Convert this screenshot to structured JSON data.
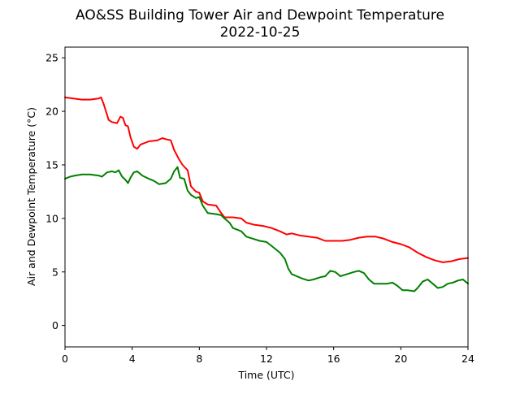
{
  "chart_data": {
    "type": "line",
    "title": "AO&SS Building Tower Air and Dewpoint Temperature",
    "subtitle": "2022-10-25",
    "xlabel": "Time (UTC)",
    "ylabel": "Air and Dewpoint Temperature (°C)",
    "xlim": [
      0,
      24
    ],
    "ylim": [
      -2,
      26
    ],
    "xticks": [
      0,
      4,
      8,
      12,
      16,
      20,
      24
    ],
    "yticks": [
      0,
      5,
      10,
      15,
      20,
      25
    ],
    "grid": false,
    "legend": "none",
    "series": [
      {
        "color": "#ff0000",
        "points": [
          [
            0.0,
            21.3
          ],
          [
            0.5,
            21.2
          ],
          [
            1.0,
            21.1
          ],
          [
            1.5,
            21.1
          ],
          [
            2.0,
            21.2
          ],
          [
            2.15,
            21.3
          ],
          [
            2.3,
            20.7
          ],
          [
            2.6,
            19.2
          ],
          [
            2.8,
            19.0
          ],
          [
            3.1,
            18.9
          ],
          [
            3.3,
            19.5
          ],
          [
            3.45,
            19.4
          ],
          [
            3.6,
            18.7
          ],
          [
            3.75,
            18.6
          ],
          [
            3.9,
            17.6
          ],
          [
            4.1,
            16.7
          ],
          [
            4.3,
            16.5
          ],
          [
            4.5,
            16.9
          ],
          [
            5.0,
            17.2
          ],
          [
            5.5,
            17.3
          ],
          [
            5.8,
            17.5
          ],
          [
            6.0,
            17.4
          ],
          [
            6.3,
            17.3
          ],
          [
            6.5,
            16.4
          ],
          [
            6.8,
            15.5
          ],
          [
            7.0,
            15.0
          ],
          [
            7.3,
            14.5
          ],
          [
            7.5,
            13.0
          ],
          [
            7.8,
            12.5
          ],
          [
            8.0,
            12.4
          ],
          [
            8.2,
            11.6
          ],
          [
            8.5,
            11.3
          ],
          [
            9.0,
            11.2
          ],
          [
            9.3,
            10.5
          ],
          [
            9.5,
            10.1
          ],
          [
            10.0,
            10.1
          ],
          [
            10.5,
            10.0
          ],
          [
            10.8,
            9.6
          ],
          [
            11.3,
            9.4
          ],
          [
            11.8,
            9.3
          ],
          [
            12.3,
            9.1
          ],
          [
            12.8,
            8.8
          ],
          [
            13.2,
            8.5
          ],
          [
            13.5,
            8.6
          ],
          [
            14.0,
            8.4
          ],
          [
            14.5,
            8.3
          ],
          [
            15.0,
            8.2
          ],
          [
            15.5,
            7.9
          ],
          [
            16.0,
            7.9
          ],
          [
            16.5,
            7.9
          ],
          [
            17.0,
            8.0
          ],
          [
            17.5,
            8.2
          ],
          [
            18.0,
            8.3
          ],
          [
            18.5,
            8.3
          ],
          [
            19.0,
            8.1
          ],
          [
            19.5,
            7.8
          ],
          [
            20.0,
            7.6
          ],
          [
            20.5,
            7.3
          ],
          [
            21.0,
            6.8
          ],
          [
            21.5,
            6.4
          ],
          [
            22.0,
            6.1
          ],
          [
            22.5,
            5.9
          ],
          [
            23.0,
            6.0
          ],
          [
            23.5,
            6.2
          ],
          [
            24.0,
            6.3
          ]
        ]
      },
      {
        "color": "#008000",
        "points": [
          [
            0.0,
            13.7
          ],
          [
            0.3,
            13.9
          ],
          [
            0.6,
            14.0
          ],
          [
            1.0,
            14.1
          ],
          [
            1.5,
            14.1
          ],
          [
            2.0,
            14.0
          ],
          [
            2.2,
            13.9
          ],
          [
            2.5,
            14.3
          ],
          [
            2.8,
            14.4
          ],
          [
            3.0,
            14.3
          ],
          [
            3.2,
            14.5
          ],
          [
            3.4,
            13.9
          ],
          [
            3.6,
            13.6
          ],
          [
            3.75,
            13.3
          ],
          [
            3.9,
            13.8
          ],
          [
            4.1,
            14.3
          ],
          [
            4.3,
            14.4
          ],
          [
            4.6,
            14.0
          ],
          [
            5.0,
            13.7
          ],
          [
            5.3,
            13.5
          ],
          [
            5.6,
            13.2
          ],
          [
            6.0,
            13.3
          ],
          [
            6.3,
            13.7
          ],
          [
            6.5,
            14.4
          ],
          [
            6.7,
            14.8
          ],
          [
            6.85,
            13.8
          ],
          [
            7.1,
            13.7
          ],
          [
            7.3,
            12.6
          ],
          [
            7.5,
            12.2
          ],
          [
            7.8,
            11.9
          ],
          [
            8.0,
            12.0
          ],
          [
            8.2,
            11.2
          ],
          [
            8.5,
            10.5
          ],
          [
            9.0,
            10.4
          ],
          [
            9.3,
            10.3
          ],
          [
            9.5,
            10.0
          ],
          [
            9.8,
            9.6
          ],
          [
            10.0,
            9.1
          ],
          [
            10.5,
            8.8
          ],
          [
            10.8,
            8.3
          ],
          [
            11.2,
            8.1
          ],
          [
            11.6,
            7.9
          ],
          [
            12.0,
            7.8
          ],
          [
            12.4,
            7.3
          ],
          [
            12.8,
            6.8
          ],
          [
            13.1,
            6.2
          ],
          [
            13.3,
            5.3
          ],
          [
            13.5,
            4.8
          ],
          [
            13.8,
            4.6
          ],
          [
            14.1,
            4.4
          ],
          [
            14.5,
            4.2
          ],
          [
            14.8,
            4.3
          ],
          [
            15.2,
            4.5
          ],
          [
            15.5,
            4.6
          ],
          [
            15.8,
            5.1
          ],
          [
            16.1,
            5.0
          ],
          [
            16.4,
            4.6
          ],
          [
            16.8,
            4.8
          ],
          [
            17.2,
            5.0
          ],
          [
            17.5,
            5.1
          ],
          [
            17.8,
            4.9
          ],
          [
            18.1,
            4.3
          ],
          [
            18.4,
            3.9
          ],
          [
            18.8,
            3.9
          ],
          [
            19.2,
            3.9
          ],
          [
            19.5,
            4.0
          ],
          [
            19.8,
            3.7
          ],
          [
            20.1,
            3.3
          ],
          [
            20.4,
            3.3
          ],
          [
            20.8,
            3.2
          ],
          [
            21.0,
            3.5
          ],
          [
            21.3,
            4.1
          ],
          [
            21.6,
            4.3
          ],
          [
            21.9,
            3.9
          ],
          [
            22.2,
            3.5
          ],
          [
            22.5,
            3.6
          ],
          [
            22.8,
            3.9
          ],
          [
            23.1,
            4.0
          ],
          [
            23.4,
            4.2
          ],
          [
            23.7,
            4.3
          ],
          [
            24.0,
            3.9
          ]
        ]
      }
    ]
  }
}
